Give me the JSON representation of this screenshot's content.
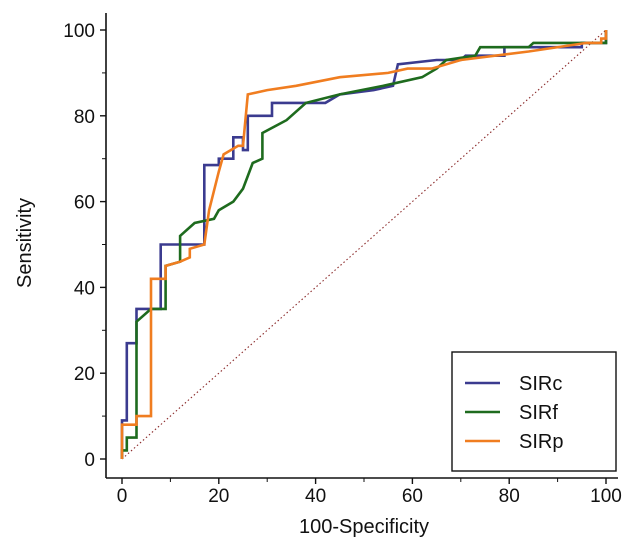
{
  "chart_data": {
    "type": "line",
    "title": "",
    "xlabel": "100-Specificity",
    "ylabel": "Sensitivity",
    "xlim": [
      0,
      100
    ],
    "ylim": [
      0,
      100
    ],
    "xticks": [
      0,
      20,
      40,
      60,
      80,
      100
    ],
    "yticks": [
      0,
      20,
      40,
      60,
      80,
      100
    ],
    "xtick_labels": [
      "0",
      "20",
      "40",
      "60",
      "80",
      "100"
    ],
    "ytick_labels": [
      "0",
      "20",
      "40",
      "60",
      "80",
      "100"
    ],
    "grid": false,
    "legend_position": "bottom-right",
    "reference_line": {
      "style": "dotted",
      "color": "#8b2a2a",
      "from": [
        0,
        0
      ],
      "to": [
        100,
        100
      ]
    },
    "series": [
      {
        "name": "SIRc",
        "color": "#3b3b8f",
        "points": [
          [
            0,
            0
          ],
          [
            0,
            9
          ],
          [
            1,
            9
          ],
          [
            1,
            27
          ],
          [
            3,
            27
          ],
          [
            3,
            35
          ],
          [
            8,
            35
          ],
          [
            8,
            50
          ],
          [
            17,
            50
          ],
          [
            17,
            68.5
          ],
          [
            20,
            68.5
          ],
          [
            20,
            70
          ],
          [
            23,
            70
          ],
          [
            23,
            75
          ],
          [
            25,
            75
          ],
          [
            25,
            72
          ],
          [
            26,
            72
          ],
          [
            26,
            80
          ],
          [
            31,
            80
          ],
          [
            31,
            83
          ],
          [
            42,
            83
          ],
          [
            45,
            85
          ],
          [
            52,
            86
          ],
          [
            56,
            87
          ],
          [
            57,
            92
          ],
          [
            65,
            93
          ],
          [
            70,
            93
          ],
          [
            71,
            94
          ],
          [
            79,
            94
          ],
          [
            79,
            96
          ],
          [
            95,
            96
          ],
          [
            95,
            97
          ],
          [
            100,
            97
          ],
          [
            100,
            100
          ]
        ]
      },
      {
        "name": "SIRf",
        "color": "#1e6b1e",
        "points": [
          [
            0,
            0
          ],
          [
            0,
            2
          ],
          [
            1,
            2
          ],
          [
            1,
            5
          ],
          [
            3,
            5
          ],
          [
            3,
            32
          ],
          [
            6,
            35
          ],
          [
            9,
            35
          ],
          [
            9,
            45
          ],
          [
            12,
            46
          ],
          [
            12,
            52
          ],
          [
            15,
            55
          ],
          [
            19,
            56
          ],
          [
            20,
            58
          ],
          [
            23,
            60
          ],
          [
            25,
            63
          ],
          [
            27,
            69
          ],
          [
            29,
            70
          ],
          [
            29,
            76
          ],
          [
            34,
            79
          ],
          [
            38,
            83
          ],
          [
            45,
            85
          ],
          [
            54,
            87
          ],
          [
            62,
            89
          ],
          [
            65,
            91
          ],
          [
            67,
            93
          ],
          [
            73,
            94
          ],
          [
            74,
            96
          ],
          [
            84,
            96
          ],
          [
            85,
            97
          ],
          [
            100,
            97
          ],
          [
            100,
            100
          ]
        ]
      },
      {
        "name": "SIRp",
        "color": "#f07d20",
        "points": [
          [
            0,
            0
          ],
          [
            0,
            8
          ],
          [
            3,
            8
          ],
          [
            3,
            10
          ],
          [
            6,
            10
          ],
          [
            6,
            42
          ],
          [
            9,
            42
          ],
          [
            9,
            45
          ],
          [
            12,
            46
          ],
          [
            14,
            47
          ],
          [
            14,
            49
          ],
          [
            17,
            50
          ],
          [
            18,
            58
          ],
          [
            20,
            67
          ],
          [
            21,
            71
          ],
          [
            24,
            73
          ],
          [
            25,
            73
          ],
          [
            26,
            85
          ],
          [
            30,
            86
          ],
          [
            36,
            87
          ],
          [
            45,
            89
          ],
          [
            55,
            90
          ],
          [
            59,
            91
          ],
          [
            64,
            91
          ],
          [
            70,
            93
          ],
          [
            84,
            95
          ],
          [
            96,
            97
          ],
          [
            99,
            97
          ],
          [
            99,
            98
          ],
          [
            100,
            98
          ],
          [
            100,
            100
          ]
        ]
      }
    ]
  }
}
